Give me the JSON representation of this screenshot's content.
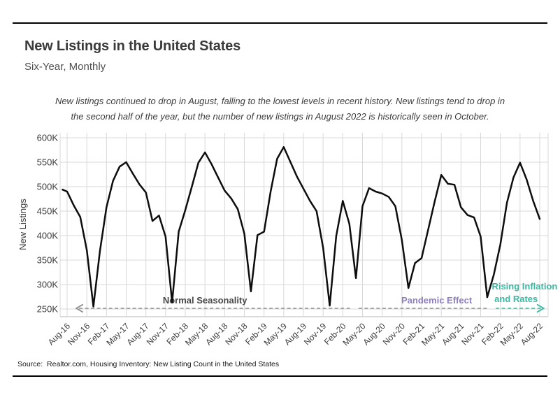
{
  "header": {
    "title": "New Listings in the United States",
    "subtitle": "Six-Year, Monthly"
  },
  "caption": {
    "line1": "New listings continued to drop in August, falling to the lowest levels in recent history. New listings tend to drop in",
    "line2": "the second half of the year, but the number of new listings in August 2022 is historically seen in October."
  },
  "source": "Source:  Realtor.com, Housing Inventory: New Listing Count in the United States",
  "colors": {
    "line": "#0d0d0d",
    "grid": "#d9d9d9",
    "axis_text": "#3c3c3c",
    "dashed_gray": "#8f8f8f",
    "annotation_gray": "#484848",
    "annotation_purple": "#8e7fc0",
    "annotation_teal": "#3cb8a2"
  },
  "chart_data": {
    "type": "line",
    "title": "New Listings in the United States",
    "xlabel": "",
    "ylabel": "New Listings",
    "unit": "thousands of listings",
    "ylim": [
      250,
      600
    ],
    "y_tick_step": 50,
    "y_tick_suffix": "K",
    "grid": true,
    "x_tick_step_months": 3,
    "x_tick_labels": [
      "Aug-16",
      "Nov-16",
      "Feb-17",
      "May-17",
      "Aug-17",
      "Nov-17",
      "Feb-18",
      "May-18",
      "Aug-18",
      "Nov-18",
      "Feb-19",
      "May-19",
      "Aug-19",
      "Nov-19",
      "Feb-20",
      "May-20",
      "Aug-20",
      "Nov-20",
      "Feb-21",
      "May-21",
      "Aug-21",
      "Nov-21",
      "Feb-22",
      "May-22",
      "Aug-22"
    ],
    "months": [
      "Aug-16",
      "Sep-16",
      "Oct-16",
      "Nov-16",
      "Dec-16",
      "Jan-17",
      "Feb-17",
      "Mar-17",
      "Apr-17",
      "May-17",
      "Jun-17",
      "Jul-17",
      "Aug-17",
      "Sep-17",
      "Oct-17",
      "Nov-17",
      "Dec-17",
      "Jan-18",
      "Feb-18",
      "Mar-18",
      "Apr-18",
      "May-18",
      "Jun-18",
      "Jul-18",
      "Aug-18",
      "Sep-18",
      "Oct-18",
      "Nov-18",
      "Dec-18",
      "Jan-19",
      "Feb-19",
      "Mar-19",
      "Apr-19",
      "May-19",
      "Jun-19",
      "Jul-19",
      "Aug-19",
      "Sep-19",
      "Oct-19",
      "Nov-19",
      "Dec-19",
      "Jan-20",
      "Feb-20",
      "Mar-20",
      "Apr-20",
      "May-20",
      "Jun-20",
      "Jul-20",
      "Aug-20",
      "Sep-20",
      "Oct-20",
      "Nov-20",
      "Dec-20",
      "Jan-21",
      "Feb-21",
      "Mar-21",
      "Apr-21",
      "May-21",
      "Jun-21",
      "Jul-21",
      "Aug-21",
      "Sep-21",
      "Oct-21",
      "Nov-21",
      "Dec-21",
      "Jan-22",
      "Feb-22",
      "Mar-22",
      "Apr-22",
      "May-22",
      "Jun-22",
      "Jul-22",
      "Aug-22"
    ],
    "values_k": [
      490,
      462,
      438,
      370,
      255,
      368,
      458,
      512,
      541,
      550,
      527,
      505,
      488,
      430,
      441,
      398,
      264,
      408,
      452,
      500,
      549,
      570,
      546,
      519,
      492,
      476,
      454,
      404,
      286,
      401,
      408,
      490,
      557,
      581,
      551,
      521,
      496,
      471,
      450,
      375,
      257,
      399,
      471,
      424,
      313,
      460,
      497,
      490,
      486,
      479,
      460,
      391,
      293,
      344,
      354,
      412,
      470,
      524,
      506,
      504,
      458,
      442,
      437,
      398,
      274,
      320,
      382,
      467,
      519,
      549,
      515,
      471,
      434
    ],
    "lead_in": {
      "month_offset": -0.7,
      "value_k": 494
    },
    "annotations": [
      {
        "id": "normal-seasonality",
        "label": "Normal Seasonality",
        "label_color": "#484848",
        "line_color": "#8f8f8f",
        "from_month": 1.4,
        "to_month": 43.4,
        "arrow": "left",
        "label_month": 21.0
      },
      {
        "id": "pandemic-effect",
        "label": "Pandemic Effect",
        "label_color": "#8e7fc0",
        "line_color": "#8f8f8f",
        "from_month": 44.4,
        "to_month": 64.2,
        "arrow": null,
        "label_month": 56.3
      },
      {
        "id": "rising-inflation-and-rates",
        "label": "Rising Inflation",
        "label2": "and Rates",
        "label_color": "#3cb8a2",
        "line_color": "#3cb8a2",
        "from_month": 65.3,
        "to_month": 72.6,
        "arrow": "right",
        "label_month": 69.7,
        "label2_month": 68.4
      }
    ]
  }
}
